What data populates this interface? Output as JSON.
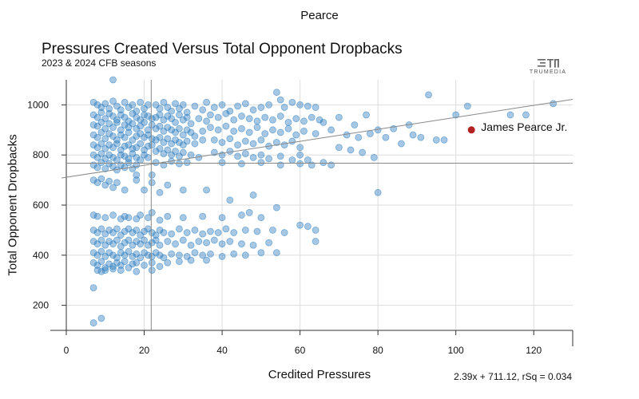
{
  "page": {
    "title": "Pearce"
  },
  "logo": {
    "text": "TRUMEDIA"
  },
  "chart_data": {
    "type": "scatter",
    "title": "Pressures Created Versus Total Opponent Dropbacks",
    "subtitle": "2023 & 2024 CFB seasons",
    "xlabel": "Credited Pressures",
    "ylabel": "Total Opponent Dropbacks",
    "xlim": [
      0,
      130
    ],
    "ylim": [
      100,
      1100
    ],
    "x_ticks": [
      0,
      20,
      40,
      60,
      80,
      100,
      120
    ],
    "y_ticks": [
      200,
      400,
      600,
      800,
      1000
    ],
    "grid": true,
    "mean_lines": {
      "x": 21.8,
      "y": 767
    },
    "regression": {
      "slope": 2.39,
      "intercept": 711.12,
      "label": "2.39x + 711.12, rSq = 0.034"
    },
    "highlight": {
      "name": "James Pearce Jr.",
      "x": 104,
      "y": 900,
      "color": "#b22222"
    },
    "point_color": "#2a7bbf",
    "points": [
      [
        7,
        1010
      ],
      [
        8,
        1000
      ],
      [
        9,
        990
      ],
      [
        10,
        1005
      ],
      [
        11,
        985
      ],
      [
        12,
        1015
      ],
      [
        13,
        995
      ],
      [
        14,
        980
      ],
      [
        15,
        1010
      ],
      [
        16,
        990
      ],
      [
        17,
        1000
      ],
      [
        18,
        975
      ],
      [
        19,
        1010
      ],
      [
        20,
        985
      ],
      [
        21,
        1000
      ],
      [
        7,
        960
      ],
      [
        8,
        950
      ],
      [
        9,
        970
      ],
      [
        10,
        945
      ],
      [
        11,
        965
      ],
      [
        12,
        955
      ],
      [
        13,
        940
      ],
      [
        14,
        960
      ],
      [
        15,
        950
      ],
      [
        16,
        935
      ],
      [
        17,
        965
      ],
      [
        18,
        950
      ],
      [
        19,
        940
      ],
      [
        20,
        960
      ],
      [
        21,
        955
      ],
      [
        22,
        945
      ],
      [
        7,
        920
      ],
      [
        8,
        915
      ],
      [
        9,
        930
      ],
      [
        10,
        905
      ],
      [
        11,
        925
      ],
      [
        12,
        910
      ],
      [
        13,
        930
      ],
      [
        14,
        900
      ],
      [
        15,
        920
      ],
      [
        16,
        910
      ],
      [
        17,
        925
      ],
      [
        18,
        905
      ],
      [
        19,
        915
      ],
      [
        20,
        930
      ],
      [
        21,
        900
      ],
      [
        22,
        920
      ],
      [
        7,
        880
      ],
      [
        8,
        870
      ],
      [
        9,
        890
      ],
      [
        10,
        865
      ],
      [
        11,
        885
      ],
      [
        12,
        875
      ],
      [
        13,
        860
      ],
      [
        14,
        880
      ],
      [
        15,
        870
      ],
      [
        16,
        890
      ],
      [
        17,
        860
      ],
      [
        18,
        875
      ],
      [
        19,
        885
      ],
      [
        20,
        870
      ],
      [
        21,
        880
      ],
      [
        22,
        865
      ],
      [
        7,
        840
      ],
      [
        8,
        830
      ],
      [
        9,
        845
      ],
      [
        10,
        825
      ],
      [
        11,
        840
      ],
      [
        12,
        830
      ],
      [
        13,
        845
      ],
      [
        14,
        820
      ],
      [
        15,
        835
      ],
      [
        16,
        840
      ],
      [
        17,
        825
      ],
      [
        18,
        830
      ],
      [
        19,
        845
      ],
      [
        20,
        820
      ],
      [
        21,
        835
      ],
      [
        22,
        840
      ],
      [
        7,
        800
      ],
      [
        8,
        790
      ],
      [
        9,
        805
      ],
      [
        10,
        785
      ],
      [
        11,
        800
      ],
      [
        12,
        790
      ],
      [
        13,
        780
      ],
      [
        14,
        800
      ],
      [
        15,
        795
      ],
      [
        16,
        785
      ],
      [
        17,
        805
      ],
      [
        18,
        790
      ],
      [
        19,
        780
      ],
      [
        20,
        800
      ],
      [
        21,
        790
      ],
      [
        7,
        760
      ],
      [
        8,
        750
      ],
      [
        9,
        770
      ],
      [
        10,
        745
      ],
      [
        11,
        765
      ],
      [
        12,
        755
      ],
      [
        13,
        740
      ],
      [
        14,
        760
      ],
      [
        15,
        750
      ],
      [
        16,
        770
      ],
      [
        17,
        745
      ],
      [
        18,
        760
      ],
      [
        23,
        1000
      ],
      [
        24,
        985
      ],
      [
        25,
        1010
      ],
      [
        26,
        990
      ],
      [
        27,
        975
      ],
      [
        28,
        1005
      ],
      [
        29,
        985
      ],
      [
        30,
        1000
      ],
      [
        31,
        970
      ],
      [
        33,
        995
      ],
      [
        35,
        980
      ],
      [
        23,
        950
      ],
      [
        24,
        960
      ],
      [
        25,
        940
      ],
      [
        26,
        955
      ],
      [
        27,
        945
      ],
      [
        28,
        930
      ],
      [
        29,
        960
      ],
      [
        30,
        940
      ],
      [
        31,
        950
      ],
      [
        32,
        925
      ],
      [
        34,
        945
      ],
      [
        36,
        935
      ],
      [
        23,
        905
      ],
      [
        24,
        915
      ],
      [
        25,
        895
      ],
      [
        26,
        910
      ],
      [
        27,
        900
      ],
      [
        28,
        890
      ],
      [
        29,
        905
      ],
      [
        30,
        880
      ],
      [
        31,
        900
      ],
      [
        32,
        890
      ],
      [
        33,
        875
      ],
      [
        35,
        895
      ],
      [
        23,
        860
      ],
      [
        24,
        870
      ],
      [
        25,
        850
      ],
      [
        26,
        865
      ],
      [
        27,
        845
      ],
      [
        28,
        860
      ],
      [
        29,
        850
      ],
      [
        30,
        840
      ],
      [
        31,
        855
      ],
      [
        33,
        845
      ],
      [
        35,
        860
      ],
      [
        23,
        815
      ],
      [
        24,
        825
      ],
      [
        25,
        805
      ],
      [
        26,
        820
      ],
      [
        27,
        800
      ],
      [
        28,
        815
      ],
      [
        29,
        795
      ],
      [
        30,
        810
      ],
      [
        32,
        800
      ],
      [
        34,
        790
      ],
      [
        23,
        770
      ],
      [
        25,
        760
      ],
      [
        27,
        775
      ],
      [
        29,
        765
      ],
      [
        31,
        770
      ],
      [
        36,
        1010
      ],
      [
        38,
        990
      ],
      [
        40,
        1000
      ],
      [
        42,
        975
      ],
      [
        44,
        995
      ],
      [
        46,
        1005
      ],
      [
        48,
        980
      ],
      [
        50,
        990
      ],
      [
        52,
        1000
      ],
      [
        54,
        1050
      ],
      [
        55,
        1020
      ],
      [
        56,
        990
      ],
      [
        58,
        1010
      ],
      [
        60,
        1000
      ],
      [
        62,
        995
      ],
      [
        64,
        990
      ],
      [
        37,
        960
      ],
      [
        39,
        950
      ],
      [
        41,
        965
      ],
      [
        43,
        940
      ],
      [
        45,
        955
      ],
      [
        47,
        945
      ],
      [
        49,
        935
      ],
      [
        51,
        950
      ],
      [
        53,
        940
      ],
      [
        55,
        955
      ],
      [
        57,
        930
      ],
      [
        59,
        945
      ],
      [
        61,
        935
      ],
      [
        63,
        950
      ],
      [
        65,
        940
      ],
      [
        37,
        910
      ],
      [
        39,
        900
      ],
      [
        41,
        915
      ],
      [
        43,
        895
      ],
      [
        45,
        905
      ],
      [
        47,
        890
      ],
      [
        49,
        910
      ],
      [
        51,
        885
      ],
      [
        53,
        900
      ],
      [
        55,
        890
      ],
      [
        57,
        905
      ],
      [
        59,
        880
      ],
      [
        61,
        895
      ],
      [
        64,
        885
      ],
      [
        38,
        860
      ],
      [
        40,
        850
      ],
      [
        42,
        865
      ],
      [
        44,
        840
      ],
      [
        46,
        855
      ],
      [
        48,
        845
      ],
      [
        50,
        860
      ],
      [
        52,
        835
      ],
      [
        54,
        850
      ],
      [
        56,
        840
      ],
      [
        58,
        855
      ],
      [
        60,
        830
      ],
      [
        38,
        810
      ],
      [
        40,
        800
      ],
      [
        42,
        815
      ],
      [
        44,
        795
      ],
      [
        46,
        805
      ],
      [
        48,
        790
      ],
      [
        50,
        800
      ],
      [
        52,
        785
      ],
      [
        55,
        795
      ],
      [
        58,
        780
      ],
      [
        60,
        800
      ],
      [
        62,
        780
      ],
      [
        40,
        770
      ],
      [
        45,
        765
      ],
      [
        50,
        770
      ],
      [
        55,
        760
      ],
      [
        60,
        765
      ],
      [
        63,
        760
      ],
      [
        66,
        770
      ],
      [
        68,
        760
      ],
      [
        66,
        930
      ],
      [
        68,
        900
      ],
      [
        70,
        950
      ],
      [
        72,
        880
      ],
      [
        74,
        920
      ],
      [
        75,
        870
      ],
      [
        77,
        960
      ],
      [
        78,
        885
      ],
      [
        80,
        900
      ],
      [
        82,
        870
      ],
      [
        84,
        905
      ],
      [
        86,
        845
      ],
      [
        88,
        920
      ],
      [
        89,
        880
      ],
      [
        91,
        870
      ],
      [
        93,
        1040
      ],
      [
        95,
        860
      ],
      [
        97,
        860
      ],
      [
        100,
        960
      ],
      [
        103,
        995
      ],
      [
        114,
        960
      ],
      [
        118,
        960
      ],
      [
        125,
        1005
      ],
      [
        70,
        830
      ],
      [
        73,
        820
      ],
      [
        76,
        810
      ],
      [
        79,
        790
      ],
      [
        80,
        650
      ],
      [
        7,
        700
      ],
      [
        8,
        690
      ],
      [
        9,
        705
      ],
      [
        10,
        680
      ],
      [
        11,
        695
      ],
      [
        12,
        670
      ],
      [
        13,
        690
      ],
      [
        15,
        660
      ],
      [
        18,
        700
      ],
      [
        20,
        660
      ],
      [
        22,
        690
      ],
      [
        24,
        650
      ],
      [
        26,
        680
      ],
      [
        30,
        660
      ],
      [
        36,
        660
      ],
      [
        42,
        620
      ],
      [
        48,
        640
      ],
      [
        54,
        590
      ],
      [
        18,
        720
      ],
      [
        22,
        720
      ],
      [
        7,
        560
      ],
      [
        8,
        555
      ],
      [
        10,
        550
      ],
      [
        12,
        560
      ],
      [
        14,
        545
      ],
      [
        15,
        555
      ],
      [
        16,
        550
      ],
      [
        18,
        545
      ],
      [
        19,
        560
      ],
      [
        21,
        550
      ],
      [
        22,
        570
      ],
      [
        24,
        540
      ],
      [
        26,
        555
      ],
      [
        30,
        550
      ],
      [
        35,
        555
      ],
      [
        40,
        550
      ],
      [
        45,
        560
      ],
      [
        47,
        570
      ],
      [
        50,
        550
      ],
      [
        7,
        500
      ],
      [
        8,
        490
      ],
      [
        9,
        505
      ],
      [
        10,
        485
      ],
      [
        11,
        500
      ],
      [
        12,
        490
      ],
      [
        13,
        505
      ],
      [
        14,
        480
      ],
      [
        15,
        495
      ],
      [
        16,
        505
      ],
      [
        17,
        490
      ],
      [
        18,
        500
      ],
      [
        19,
        480
      ],
      [
        20,
        495
      ],
      [
        21,
        505
      ],
      [
        22,
        490
      ],
      [
        23,
        480
      ],
      [
        24,
        500
      ],
      [
        25,
        490
      ],
      [
        27,
        485
      ],
      [
        29,
        505
      ],
      [
        31,
        490
      ],
      [
        33,
        500
      ],
      [
        35,
        485
      ],
      [
        37,
        495
      ],
      [
        39,
        490
      ],
      [
        41,
        505
      ],
      [
        43,
        490
      ],
      [
        46,
        500
      ],
      [
        49,
        495
      ],
      [
        53,
        500
      ],
      [
        56,
        490
      ],
      [
        60,
        520
      ],
      [
        62,
        515
      ],
      [
        64,
        500
      ],
      [
        7,
        455
      ],
      [
        8,
        445
      ],
      [
        9,
        460
      ],
      [
        10,
        440
      ],
      [
        11,
        455
      ],
      [
        12,
        445
      ],
      [
        13,
        460
      ],
      [
        14,
        435
      ],
      [
        15,
        450
      ],
      [
        16,
        460
      ],
      [
        17,
        440
      ],
      [
        18,
        455
      ],
      [
        19,
        445
      ],
      [
        20,
        460
      ],
      [
        21,
        440
      ],
      [
        22,
        450
      ],
      [
        23,
        460
      ],
      [
        24,
        440
      ],
      [
        26,
        455
      ],
      [
        28,
        445
      ],
      [
        30,
        460
      ],
      [
        32,
        440
      ],
      [
        34,
        455
      ],
      [
        36,
        450
      ],
      [
        38,
        460
      ],
      [
        40,
        445
      ],
      [
        42,
        455
      ],
      [
        45,
        445
      ],
      [
        48,
        440
      ],
      [
        52,
        450
      ],
      [
        64,
        455
      ],
      [
        7,
        410
      ],
      [
        8,
        400
      ],
      [
        9,
        415
      ],
      [
        10,
        395
      ],
      [
        11,
        410
      ],
      [
        12,
        400
      ],
      [
        13,
        390
      ],
      [
        14,
        410
      ],
      [
        15,
        400
      ],
      [
        16,
        415
      ],
      [
        17,
        395
      ],
      [
        18,
        405
      ],
      [
        19,
        390
      ],
      [
        20,
        410
      ],
      [
        21,
        400
      ],
      [
        22,
        395
      ],
      [
        23,
        410
      ],
      [
        24,
        400
      ],
      [
        25,
        390
      ],
      [
        27,
        405
      ],
      [
        29,
        400
      ],
      [
        31,
        395
      ],
      [
        33,
        410
      ],
      [
        35,
        400
      ],
      [
        37,
        405
      ],
      [
        40,
        395
      ],
      [
        43,
        405
      ],
      [
        46,
        400
      ],
      [
        50,
        410
      ],
      [
        54,
        410
      ],
      [
        7,
        370
      ],
      [
        8,
        360
      ],
      [
        9,
        375
      ],
      [
        10,
        350
      ],
      [
        11,
        365
      ],
      [
        12,
        355
      ],
      [
        13,
        370
      ],
      [
        14,
        360
      ],
      [
        15,
        375
      ],
      [
        16,
        350
      ],
      [
        17,
        365
      ],
      [
        18,
        370
      ],
      [
        20,
        360
      ],
      [
        22,
        370
      ],
      [
        24,
        355
      ],
      [
        26,
        370
      ],
      [
        29,
        375
      ],
      [
        32,
        380
      ],
      [
        36,
        380
      ],
      [
        8,
        340
      ],
      [
        9,
        335
      ],
      [
        10,
        340
      ],
      [
        12,
        345
      ],
      [
        14,
        340
      ],
      [
        18,
        335
      ],
      [
        22,
        340
      ],
      [
        7,
        270
      ],
      [
        7,
        130
      ],
      [
        9,
        148
      ],
      [
        12,
        1100
      ]
    ]
  }
}
